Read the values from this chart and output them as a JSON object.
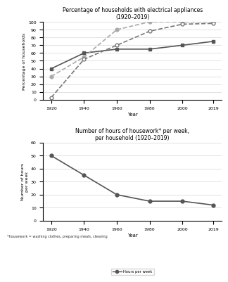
{
  "years": [
    1920,
    1940,
    1960,
    1980,
    2000,
    2019
  ],
  "washing_machine": [
    40,
    60,
    65,
    65,
    70,
    75
  ],
  "refrigerator": [
    30,
    55,
    90,
    100,
    100,
    100
  ],
  "vacuum_cleaner": [
    3,
    52,
    70,
    88,
    97,
    98
  ],
  "hours_per_week": [
    50,
    35,
    20,
    15,
    15,
    12
  ],
  "title1": "Percentage of households with electrical appliances\n(1920–2019)",
  "ylabel1": "Percentage of households",
  "title2": "Number of hours of housework* per week,\nper household (1920–2019)",
  "ylabel2": "Number of hours\nper week",
  "xlabel": "Year",
  "footnote": "*housework = washing clothes, preparing meals, cleaning",
  "ylim1": [
    0,
    100
  ],
  "ylim2": [
    0,
    60
  ],
  "yticks1": [
    0,
    10,
    20,
    30,
    40,
    50,
    60,
    70,
    80,
    90,
    100
  ],
  "yticks2": [
    0,
    10,
    20,
    30,
    40,
    50,
    60
  ],
  "color_wm": "#555555",
  "color_fridge": "#aaaaaa",
  "color_vc": "#777777"
}
